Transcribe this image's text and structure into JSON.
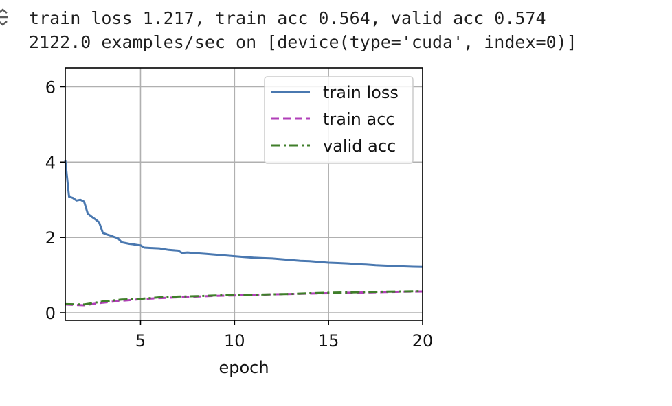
{
  "output": {
    "icon": "output-toggle-icon",
    "log_lines": [
      "train loss 1.217, train acc 0.564, valid acc 0.574",
      "2122.0 examples/sec on [device(type='cuda', index=0)]"
    ]
  },
  "chart_data": {
    "type": "line",
    "title": "",
    "xlabel": "epoch",
    "ylabel": "",
    "xlim": [
      1,
      20
    ],
    "ylim": [
      -0.2,
      6.5
    ],
    "xticks": [
      5,
      10,
      15,
      20
    ],
    "yticks": [
      0,
      2,
      4,
      6
    ],
    "grid": true,
    "legend_position": "top-right",
    "series": [
      {
        "name": "train loss",
        "color": "#4a78b0",
        "style": "solid",
        "x": [
          1.0,
          1.2,
          1.4,
          1.6,
          1.8,
          2.0,
          2.2,
          2.4,
          2.6,
          2.8,
          3.0,
          3.2,
          3.4,
          3.6,
          3.8,
          4.0,
          4.2,
          4.4,
          4.6,
          4.8,
          5.0,
          5.2,
          5.5,
          6.0,
          6.5,
          7.0,
          7.2,
          7.5,
          8.0,
          8.5,
          9.0,
          9.5,
          10.0,
          10.5,
          11.0,
          11.5,
          12.0,
          12.5,
          13.0,
          13.5,
          14.0,
          14.5,
          15.0,
          15.5,
          16.0,
          16.5,
          17.0,
          17.5,
          18.0,
          18.5,
          19.0,
          19.5,
          20.0
        ],
        "y": [
          4.05,
          3.08,
          3.05,
          2.98,
          3.0,
          2.95,
          2.63,
          2.55,
          2.48,
          2.4,
          2.12,
          2.08,
          2.05,
          2.01,
          1.98,
          1.87,
          1.85,
          1.83,
          1.82,
          1.8,
          1.79,
          1.73,
          1.72,
          1.71,
          1.67,
          1.65,
          1.59,
          1.6,
          1.58,
          1.56,
          1.54,
          1.52,
          1.5,
          1.48,
          1.46,
          1.45,
          1.44,
          1.42,
          1.4,
          1.38,
          1.37,
          1.35,
          1.33,
          1.32,
          1.31,
          1.29,
          1.28,
          1.26,
          1.25,
          1.24,
          1.23,
          1.22,
          1.217
        ]
      },
      {
        "name": "train acc",
        "color": "#b13fb8",
        "style": "dashed",
        "x": [
          1,
          2,
          3,
          4,
          5,
          6,
          7,
          8,
          9,
          10,
          11,
          12,
          13,
          14,
          15,
          16,
          17,
          18,
          19,
          20
        ],
        "y": [
          0.22,
          0.2,
          0.27,
          0.32,
          0.36,
          0.39,
          0.41,
          0.43,
          0.45,
          0.46,
          0.47,
          0.49,
          0.5,
          0.51,
          0.52,
          0.53,
          0.54,
          0.55,
          0.56,
          0.564
        ]
      },
      {
        "name": "valid acc",
        "color": "#3f7e2a",
        "style": "dashdot",
        "x": [
          1,
          2,
          3,
          4,
          5,
          6,
          7,
          8,
          9,
          10,
          11,
          12,
          13,
          14,
          15,
          16,
          17,
          18,
          19,
          20
        ],
        "y": [
          0.23,
          0.22,
          0.3,
          0.35,
          0.37,
          0.41,
          0.43,
          0.44,
          0.46,
          0.47,
          0.48,
          0.49,
          0.5,
          0.52,
          0.53,
          0.54,
          0.55,
          0.56,
          0.565,
          0.574
        ]
      }
    ]
  }
}
